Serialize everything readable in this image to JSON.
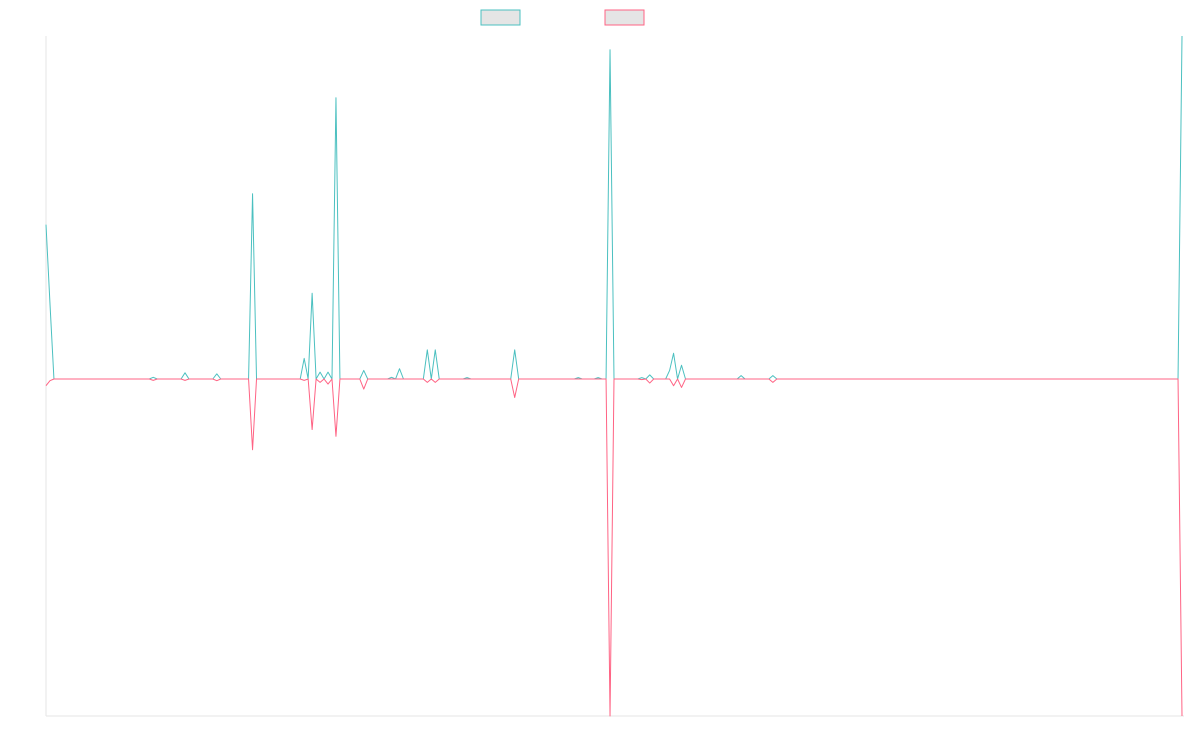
{
  "chart_data": {
    "type": "line",
    "title": "",
    "xlabel": "",
    "ylabel": "",
    "grid": false,
    "legend_position": "top",
    "n_points": 287,
    "ylim": [
      -1.0,
      1.0
    ],
    "series": [
      {
        "name": "",
        "color": "#4bc0c0",
        "fill": "#e5e5e5",
        "points": [
          [
            0,
            0.45
          ],
          [
            1,
            0.22
          ],
          [
            2,
            0
          ],
          [
            26,
            0
          ],
          [
            27,
            0.005
          ],
          [
            28,
            0
          ],
          [
            34,
            0
          ],
          [
            35,
            0.018
          ],
          [
            36,
            0
          ],
          [
            42,
            0
          ],
          [
            43,
            0.015
          ],
          [
            44,
            0
          ],
          [
            51,
            0
          ],
          [
            52,
            0.54
          ],
          [
            53,
            0
          ],
          [
            64,
            0
          ],
          [
            65,
            0.06
          ],
          [
            66,
            0
          ],
          [
            67,
            0.25
          ],
          [
            68,
            0
          ],
          [
            69,
            0.02
          ],
          [
            70,
            0
          ],
          [
            71,
            0.02
          ],
          [
            72,
            0
          ],
          [
            73,
            0.82
          ],
          [
            74,
            0
          ],
          [
            79,
            0
          ],
          [
            80,
            0.025
          ],
          [
            81,
            0
          ],
          [
            86,
            0
          ],
          [
            87,
            0.005
          ],
          [
            88,
            0
          ],
          [
            89,
            0.03
          ],
          [
            90,
            0
          ],
          [
            95,
            0
          ],
          [
            96,
            0.085
          ],
          [
            97,
            0
          ],
          [
            98,
            0.085
          ],
          [
            99,
            0
          ],
          [
            105,
            0
          ],
          [
            106,
            0.004
          ],
          [
            107,
            0
          ],
          [
            117,
            0
          ],
          [
            118,
            0.085
          ],
          [
            119,
            0
          ],
          [
            133,
            0
          ],
          [
            134,
            0.004
          ],
          [
            135,
            0
          ],
          [
            138,
            0
          ],
          [
            139,
            0.004
          ],
          [
            140,
            0
          ],
          [
            141,
            0
          ],
          [
            142,
            0.96
          ],
          [
            143,
            0
          ],
          [
            149,
            0
          ],
          [
            150,
            0.004
          ],
          [
            151,
            0
          ],
          [
            152,
            0.012
          ],
          [
            153,
            0
          ],
          [
            156,
            0
          ],
          [
            157,
            0.025
          ],
          [
            158,
            0.075
          ],
          [
            159,
            0
          ],
          [
            160,
            0.04
          ],
          [
            161,
            0
          ],
          [
            174,
            0
          ],
          [
            175,
            0.01
          ],
          [
            176,
            0
          ],
          [
            182,
            0
          ],
          [
            183,
            0.01
          ],
          [
            184,
            0
          ],
          [
            285,
            0
          ],
          [
            286,
            1.0
          ]
        ]
      },
      {
        "name": "",
        "color": "#ff6384",
        "fill": "#e5e5e5",
        "points": [
          [
            0,
            -0.02
          ],
          [
            1,
            -0.005
          ],
          [
            2,
            0
          ],
          [
            26,
            0
          ],
          [
            27,
            -0.004
          ],
          [
            28,
            0
          ],
          [
            34,
            0
          ],
          [
            35,
            -0.004
          ],
          [
            36,
            0
          ],
          [
            42,
            0
          ],
          [
            43,
            -0.005
          ],
          [
            44,
            0
          ],
          [
            51,
            0
          ],
          [
            52,
            -0.21
          ],
          [
            53,
            0
          ],
          [
            64,
            0
          ],
          [
            65,
            -0.004
          ],
          [
            66,
            0
          ],
          [
            67,
            -0.15
          ],
          [
            68,
            0
          ],
          [
            69,
            -0.01
          ],
          [
            70,
            0
          ],
          [
            71,
            -0.015
          ],
          [
            72,
            0
          ],
          [
            73,
            -0.17
          ],
          [
            74,
            0
          ],
          [
            79,
            0
          ],
          [
            80,
            -0.03
          ],
          [
            81,
            0
          ],
          [
            95,
            0
          ],
          [
            96,
            -0.01
          ],
          [
            97,
            0
          ],
          [
            98,
            -0.01
          ],
          [
            99,
            0
          ],
          [
            117,
            0
          ],
          [
            118,
            -0.055
          ],
          [
            119,
            0
          ],
          [
            141,
            0
          ],
          [
            142,
            -1.0
          ],
          [
            143,
            0
          ],
          [
            149,
            0
          ],
          [
            150,
            -0.002
          ],
          [
            151,
            0
          ],
          [
            152,
            -0.012
          ],
          [
            153,
            0
          ],
          [
            157,
            0
          ],
          [
            158,
            -0.02
          ],
          [
            159,
            0
          ],
          [
            160,
            -0.025
          ],
          [
            161,
            0
          ],
          [
            182,
            0
          ],
          [
            183,
            -0.01
          ],
          [
            184,
            0
          ],
          [
            285,
            0
          ],
          [
            286,
            -1.0
          ]
        ]
      }
    ]
  }
}
